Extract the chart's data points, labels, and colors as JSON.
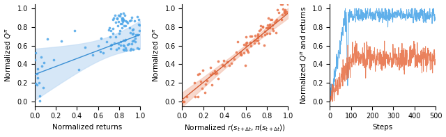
{
  "fig_width": 6.4,
  "fig_height": 1.97,
  "dpi": 100,
  "scatter1": {
    "color": "#4da6e8",
    "xlabel": "Normalized returns",
    "ylabel": "Normalized $Q^\\pi$",
    "xlim": [
      0,
      1.0
    ],
    "ylim": [
      -0.05,
      1.05
    ],
    "regression_color": "#3a8fd4",
    "ci_color": "#c5ddf5"
  },
  "scatter2": {
    "color": "#e8734a",
    "xlabel": "Normalized $r(s_{t+\\Delta t}, \\pi(s_{t+\\Delta t}))$",
    "ylabel": "Normalized $Q^\\pi$",
    "xlim": [
      0,
      1.0
    ],
    "ylim": [
      -0.05,
      1.05
    ],
    "regression_color": "#d45a30",
    "ci_color": "#f5c8b8"
  },
  "lineplot": {
    "blue_color": "#4da6e8",
    "orange_color": "#e8734a",
    "xlabel": "Steps",
    "ylabel": "Normalized $Q^\\pi$ and returns",
    "xlim": [
      0,
      500
    ],
    "ylim": [
      -0.05,
      1.05
    ],
    "n_steps": 500
  },
  "background_color": "#ffffff",
  "tick_fontsize": 7,
  "label_fontsize": 7.5
}
